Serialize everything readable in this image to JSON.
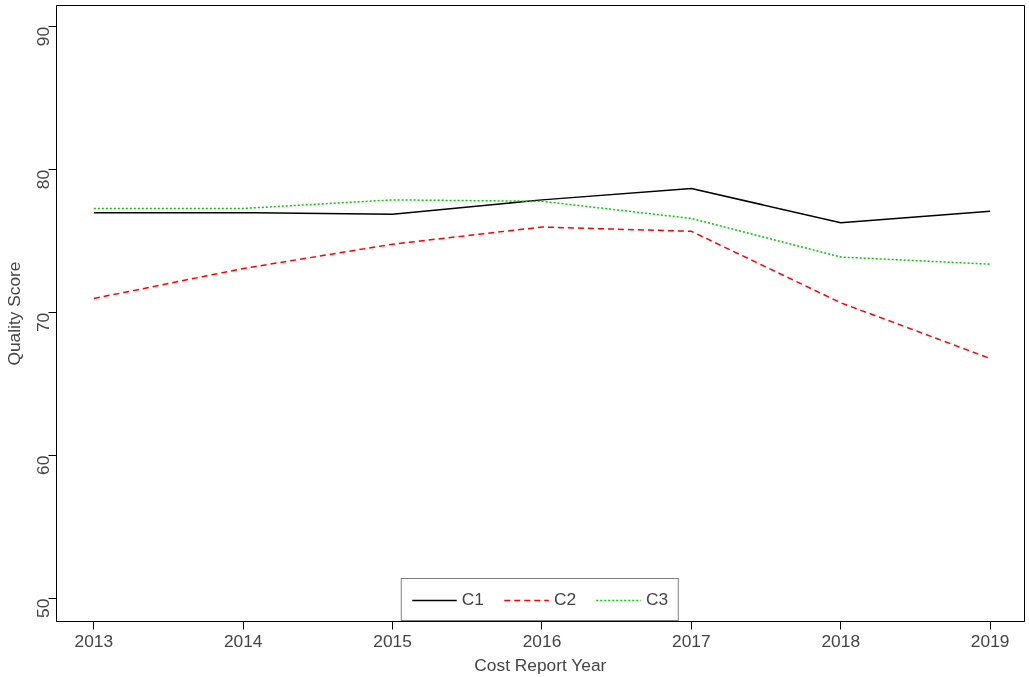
{
  "chart_data": {
    "type": "line",
    "xlabel": "Cost Report Year",
    "ylabel": "Quality Score",
    "x": [
      2013,
      2014,
      2015,
      2016,
      2017,
      2018,
      2019
    ],
    "series": [
      {
        "name": "C1",
        "color": "#000000",
        "line_style": "solid",
        "values": [
          77.0,
          77.0,
          76.9,
          77.9,
          78.7,
          76.3,
          77.1
        ]
      },
      {
        "name": "C2",
        "color": "#ff0000",
        "line_style": "dashed",
        "values": [
          71.0,
          73.1,
          74.8,
          76.0,
          75.7,
          70.7,
          66.8
        ]
      },
      {
        "name": "C3",
        "color": "#00cd00",
        "line_style": "dotted",
        "values": [
          77.3,
          77.3,
          77.9,
          77.8,
          76.6,
          73.9,
          73.4
        ]
      }
    ],
    "xlim": [
      2012.75,
      2019.23
    ],
    "ylim": [
      48.4,
      91.5
    ],
    "xticks": [
      2013,
      2014,
      2015,
      2016,
      2017,
      2018,
      2019
    ],
    "yticks": [
      50,
      60,
      70,
      80,
      90
    ],
    "grid": false,
    "legend": "bottom",
    "marker": "none"
  }
}
